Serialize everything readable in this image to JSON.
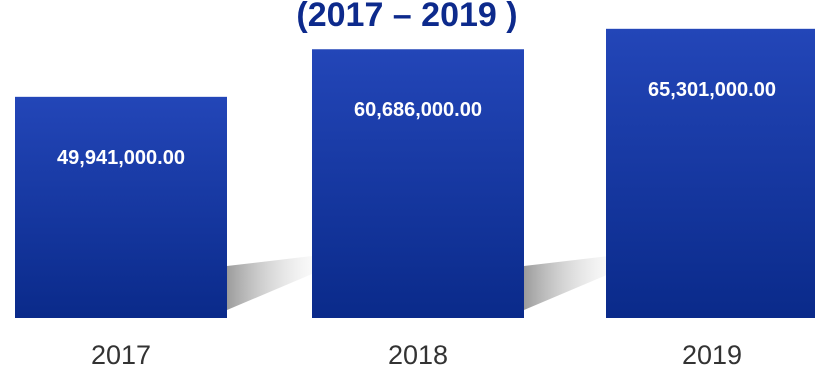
{
  "chart_data": {
    "type": "bar",
    "title": "(2017 – 2019 )",
    "categories": [
      "2017",
      "2018",
      "2019"
    ],
    "values": [
      49941000.0,
      60686000.0,
      65301000.0
    ],
    "value_labels": [
      "49,941,000.00",
      "60,686,000.00",
      "65,301,000.00"
    ],
    "xlabel": "",
    "ylabel": "",
    "ylim": [
      0,
      70000000
    ],
    "grid": false,
    "legend": "none",
    "colors": {
      "bar_top": "#2346b8",
      "bar_bottom": "#0a2a8a",
      "shadow": "#b8b8b8"
    }
  }
}
